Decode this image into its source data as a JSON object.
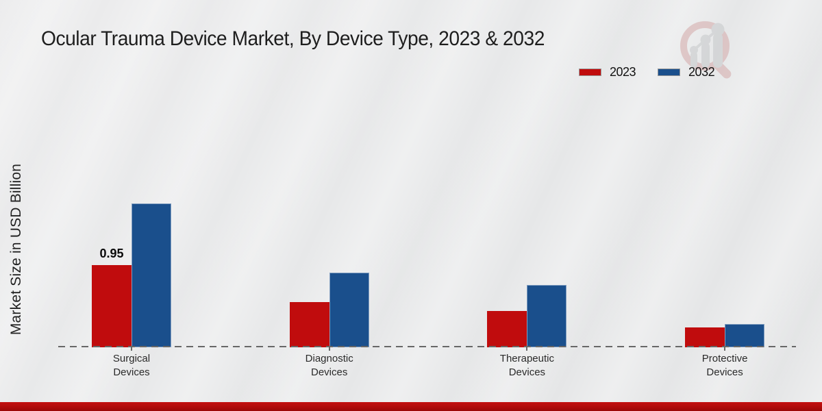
{
  "title": "Ocular Trauma Device Market, By Device Type, 2023 & 2032",
  "ylabel": "Market Size in USD Billion",
  "legend": [
    {
      "label": "2023",
      "color": "#c00c0d"
    },
    {
      "label": "2032",
      "color": "#1a4f8c"
    }
  ],
  "chart_data": {
    "type": "bar",
    "title": "Ocular Trauma Device Market, By Device Type, 2023 & 2032",
    "xlabel": "",
    "ylabel": "Market Size in USD Billion",
    "categories": [
      "Surgical Devices",
      "Diagnostic Devices",
      "Therapeutic Devices",
      "Protective Devices"
    ],
    "series": [
      {
        "name": "2023",
        "color": "#c00c0d",
        "values": [
          0.95,
          0.52,
          0.42,
          0.23
        ]
      },
      {
        "name": "2032",
        "color": "#1a4f8c",
        "values": [
          1.66,
          0.86,
          0.72,
          0.27
        ]
      }
    ],
    "ylim": [
      0,
      2
    ],
    "grid": false,
    "axis_style": "dashed-baseline-only",
    "legend_position": "top-right",
    "data_labels": [
      {
        "series": "2023",
        "category": "Surgical Devices",
        "text": "0.95"
      }
    ]
  },
  "logo": {
    "name": "market-research-magnifier-logo"
  },
  "footer": {
    "accent_color": "#b00b0b"
  }
}
